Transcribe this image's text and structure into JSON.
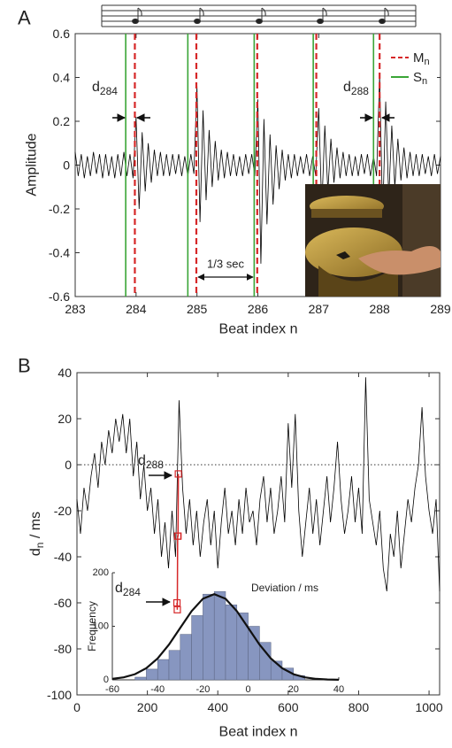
{
  "chart_data": [
    {
      "type": "line",
      "panel_label": "A",
      "ylabel": "Amplitude",
      "xlabel": "Beat index n",
      "xlim": [
        283,
        289
      ],
      "ylim": [
        -0.6,
        0.6
      ],
      "xticks": [
        283,
        284,
        285,
        286,
        287,
        288,
        289
      ],
      "yticks": [
        -0.6,
        -0.4,
        -0.2,
        0,
        0.2,
        0.4,
        0.6
      ],
      "color": "#000000",
      "x": [
        283,
        283.05,
        283.1,
        283.15,
        283.2,
        283.25,
        283.3,
        283.35,
        283.4,
        283.45,
        283.5,
        283.55,
        283.6,
        283.65,
        283.7,
        283.75,
        283.8,
        283.85,
        283.9,
        283.95,
        284,
        284.05,
        284.1,
        284.15,
        284.2,
        284.25,
        284.3,
        284.35,
        284.4,
        284.45,
        284.5,
        284.55,
        284.6,
        284.65,
        284.7,
        284.75,
        284.8,
        284.85,
        284.9,
        284.95,
        285,
        285.05,
        285.1,
        285.15,
        285.2,
        285.25,
        285.3,
        285.35,
        285.4,
        285.45,
        285.5,
        285.55,
        285.6,
        285.65,
        285.7,
        285.75,
        285.8,
        285.85,
        285.9,
        285.95,
        286,
        286.05,
        286.1,
        286.15,
        286.2,
        286.25,
        286.3,
        286.35,
        286.4,
        286.45,
        286.5,
        286.55,
        286.6,
        286.65,
        286.7,
        286.75,
        286.8,
        286.85,
        286.9,
        286.95,
        287,
        287.05,
        287.1,
        287.15,
        287.2,
        287.25,
        287.3,
        287.35,
        287.4,
        287.45,
        287.5,
        287.55,
        287.6,
        287.65,
        287.7,
        287.75,
        287.8,
        287.85,
        287.9,
        287.95,
        288,
        288.05,
        288.1,
        288.15,
        288.2,
        288.25,
        288.3,
        288.35,
        288.4,
        288.45,
        288.5,
        288.55,
        288.6,
        288.65,
        288.7,
        288.75,
        288.8,
        288.85,
        288.9,
        288.95,
        289
      ],
      "values": [
        0.06,
        -0.05,
        0.05,
        -0.06,
        0.04,
        -0.05,
        0.06,
        -0.04,
        0.05,
        -0.06,
        0.05,
        -0.05,
        0.04,
        -0.06,
        0.05,
        -0.05,
        0.06,
        -0.05,
        0.05,
        -0.06,
        0.22,
        -0.2,
        0.15,
        -0.12,
        0.1,
        -0.08,
        0.07,
        -0.05,
        0.06,
        -0.05,
        0.05,
        -0.05,
        0.05,
        -0.04,
        0.05,
        -0.05,
        0.04,
        -0.05,
        0.05,
        -0.04,
        0.36,
        -0.26,
        0.25,
        -0.16,
        0.16,
        -0.1,
        0.11,
        -0.07,
        0.07,
        -0.06,
        0.06,
        -0.05,
        0.05,
        -0.05,
        0.04,
        -0.05,
        0.05,
        -0.04,
        0.05,
        -0.05,
        0.3,
        -0.45,
        0.21,
        -0.27,
        0.14,
        -0.18,
        0.09,
        -0.11,
        0.07,
        -0.07,
        0.05,
        -0.06,
        0.05,
        -0.05,
        0.04,
        -0.04,
        0.05,
        -0.05,
        0.04,
        -0.05,
        0.26,
        -0.2,
        0.18,
        -0.12,
        0.12,
        -0.08,
        0.08,
        -0.06,
        0.06,
        -0.05,
        0.05,
        -0.05,
        0.04,
        -0.05,
        0.05,
        -0.04,
        0.05,
        -0.05,
        0.04,
        -0.05,
        0.41,
        -0.25,
        0.29,
        -0.15,
        0.18,
        -0.1,
        0.12,
        -0.07,
        0.08,
        -0.06,
        0.06,
        -0.05,
        0.05,
        -0.05,
        0.05,
        -0.04,
        0.04,
        -0.05,
        0.05,
        -0.04,
        0.04
      ],
      "markers": [
        {
          "name": {
            "base": "M",
            "sub": "n"
          },
          "color": "#d62728",
          "style": "dashed",
          "x": [
            283.98,
            284.99,
            285.99,
            286.96,
            288.0
          ]
        },
        {
          "name": {
            "base": "S",
            "sub": "n"
          },
          "color": "#3aa537",
          "style": "solid",
          "x": [
            283.83,
            284.85,
            285.94,
            286.91,
            287.9
          ]
        }
      ],
      "annotations": [
        {
          "base": "d",
          "sub": "284"
        },
        {
          "base": "d",
          "sub": "288"
        },
        "1/3 sec"
      ]
    },
    {
      "type": "line",
      "panel_label": "B",
      "ylabel": {
        "base": "d",
        "sub": "n",
        "rest": " / ms"
      },
      "xlabel": "Beat index n",
      "xlim": [
        0,
        1030
      ],
      "ylim": [
        -100,
        40
      ],
      "xticks": [
        0,
        200,
        400,
        600,
        800,
        1000
      ],
      "yticks": [
        -100,
        -80,
        -60,
        -40,
        -20,
        0,
        20,
        40
      ],
      "zero_line": true,
      "color": "#000000",
      "x": [
        0,
        10,
        20,
        30,
        40,
        50,
        60,
        70,
        80,
        90,
        100,
        110,
        120,
        130,
        140,
        150,
        160,
        170,
        180,
        190,
        200,
        210,
        220,
        230,
        240,
        250,
        260,
        270,
        280,
        290,
        300,
        310,
        320,
        330,
        340,
        350,
        360,
        370,
        380,
        390,
        400,
        410,
        420,
        430,
        440,
        450,
        460,
        470,
        480,
        490,
        500,
        510,
        520,
        530,
        540,
        550,
        560,
        570,
        580,
        590,
        600,
        610,
        620,
        630,
        640,
        650,
        660,
        670,
        680,
        690,
        700,
        710,
        720,
        730,
        740,
        750,
        760,
        770,
        780,
        790,
        800,
        810,
        820,
        830,
        840,
        850,
        860,
        870,
        880,
        890,
        900,
        910,
        920,
        930,
        940,
        950,
        960,
        970,
        980,
        990,
        1000,
        1010,
        1020,
        1030
      ],
      "values": [
        -15,
        -30,
        -10,
        -20,
        -5,
        5,
        -10,
        10,
        0,
        15,
        5,
        20,
        10,
        22,
        5,
        20,
        -5,
        10,
        -15,
        0,
        -20,
        -10,
        -30,
        -15,
        -40,
        -25,
        -45,
        -20,
        -40,
        28,
        -10,
        -30,
        -15,
        -35,
        -20,
        -40,
        -25,
        -15,
        -35,
        -20,
        -45,
        -25,
        -10,
        -30,
        -20,
        -35,
        -15,
        -30,
        -10,
        -25,
        -20,
        -35,
        -15,
        -5,
        -25,
        -10,
        -30,
        -20,
        -5,
        -25,
        18,
        -10,
        22,
        -20,
        -40,
        -25,
        -10,
        -30,
        -15,
        -35,
        -20,
        -5,
        -25,
        -10,
        10,
        -15,
        -30,
        -20,
        -5,
        -25,
        -10,
        -30,
        38,
        -15,
        -25,
        -35,
        -20,
        -45,
        -55,
        -30,
        -40,
        -20,
        -45,
        -30,
        -15,
        -25,
        -10,
        0,
        25,
        -5,
        -20,
        -30,
        -15,
        -55
      ],
      "highlight": {
        "color": "#d62728",
        "x": [
          284,
          285,
          286,
          287,
          288
        ],
        "values": [
          -60,
          -63,
          -31,
          -31,
          -4
        ]
      },
      "annotations": [
        {
          "base": "d",
          "sub": "288"
        },
        {
          "base": "d",
          "sub": "284"
        }
      ],
      "inset": {
        "type": "histogram",
        "xlabel": "Deviation / ms",
        "ylabel": "Frequency",
        "bins": [
          -50,
          -45,
          -40,
          -35,
          -30,
          -25,
          -20,
          -15,
          -10,
          -5,
          0,
          5,
          10,
          15,
          20,
          25
        ],
        "counts": [
          5,
          20,
          38,
          55,
          85,
          120,
          160,
          165,
          140,
          125,
          100,
          70,
          35,
          22,
          8
        ],
        "color": "#8796c0",
        "xlim": [
          -60,
          40
        ],
        "ylim": [
          0,
          200
        ],
        "xticks": [
          -60,
          -40,
          -20,
          0,
          20,
          40
        ],
        "yticks": [
          0,
          100,
          200
        ],
        "fit": {
          "color": "#111111",
          "x": [
            -60,
            -55,
            -50,
            -45,
            -40,
            -35,
            -30,
            -25,
            -20,
            -15,
            -10,
            -5,
            0,
            5,
            10,
            15,
            20,
            25,
            30,
            35,
            40
          ],
          "values": [
            1.8,
            4.6,
            10.5,
            21.7,
            39.9,
            65.8,
            97.1,
            128.2,
            151.4,
            160,
            151.4,
            128.2,
            97.1,
            65.8,
            39.9,
            21.7,
            10.5,
            4.6,
            1.8,
            0.6,
            0.2
          ]
        }
      }
    }
  ]
}
